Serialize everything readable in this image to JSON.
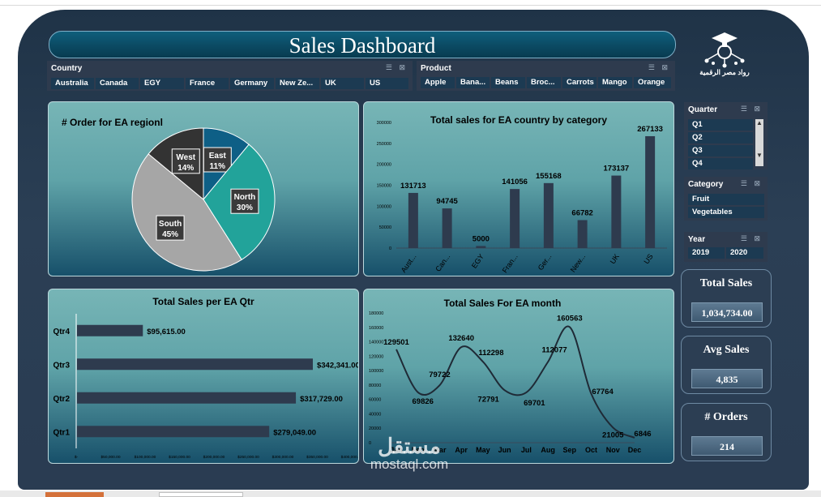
{
  "title": "Sales Dashboard",
  "logo_text": "رواد مصر الرقمية",
  "watermark": {
    "arabic": "مستقل",
    "latin": "mostaql.com"
  },
  "slicers": {
    "country": {
      "label": "Country",
      "items": [
        "Australia",
        "Canada",
        "EGY",
        "France",
        "Germany",
        "New Ze...",
        "UK",
        "US"
      ]
    },
    "product": {
      "label": "Product",
      "items": [
        "Apple",
        "Bana...",
        "Beans",
        "Broc...",
        "Carrots",
        "Mango",
        "Orange"
      ]
    },
    "quarter": {
      "label": "Quarter",
      "items": [
        "Q1",
        "Q2",
        "Q3",
        "Q4"
      ]
    },
    "category": {
      "label": "Category",
      "items": [
        "Fruit",
        "Vegetables"
      ]
    },
    "year": {
      "label": "Year",
      "items": [
        "2019",
        "2020"
      ]
    }
  },
  "kpis": {
    "total_sales": {
      "label": "Total Sales",
      "value": "1,034,734.00"
    },
    "avg_sales": {
      "label": "Avg Sales",
      "value": "4,835"
    },
    "orders": {
      "label": "# Orders",
      "value": "214"
    }
  },
  "colors": {
    "accent": "#0f5f7c",
    "bar": "#2e3b4e",
    "pie_east": "#0e5f86",
    "pie_north": "#22a39a",
    "pie_south": "#a6a6a6",
    "pie_west": "#333333"
  },
  "chart_data": [
    {
      "type": "pie",
      "title": "# Order for EA regionl",
      "categories": [
        "East",
        "North",
        "South",
        "West"
      ],
      "values": [
        11,
        30,
        45,
        14
      ],
      "labels": [
        "11%",
        "30%",
        "45%",
        "14%"
      ]
    },
    {
      "type": "bar",
      "title": "Total sales for EA country by category",
      "categories": [
        "Aust...",
        "Can...",
        "EGY",
        "Fran...",
        "Ger...",
        "New...",
        "UK",
        "US"
      ],
      "values": [
        131713,
        94745,
        5000,
        141056,
        155168,
        66782,
        173137,
        267133
      ],
      "ylim": [
        0,
        300000
      ],
      "yticks": [
        "0",
        "50000",
        "100000",
        "150000",
        "200000",
        "250000",
        "300000"
      ]
    },
    {
      "type": "bar",
      "orientation": "horizontal",
      "title": "Total Sales per EA Qtr",
      "categories": [
        "Qtr1",
        "Qtr2",
        "Qtr3",
        "Qtr4"
      ],
      "values": [
        279049,
        317729,
        342341,
        95615
      ],
      "labels": [
        "$279,049.00",
        "$317,729.00",
        "$342,341.00",
        "$95,615.00"
      ],
      "xlim": [
        0,
        400000
      ],
      "xticks": [
        "$-",
        "$50,000.00",
        "$100,000.00",
        "$150,000.00",
        "$200,000.00",
        "$250,000.00",
        "$300,000.00",
        "$350,000.00",
        "$400,000.00"
      ]
    },
    {
      "type": "line",
      "title": "Total Sales For EA month",
      "categories": [
        "Jan",
        "Feb",
        "Mar",
        "Apr",
        "May",
        "Jun",
        "Jul",
        "Aug",
        "Sep",
        "Oct",
        "Nov",
        "Dec"
      ],
      "values": [
        129501,
        69826,
        79722,
        132640,
        112298,
        72791,
        69701,
        112077,
        160563,
        67764,
        21005,
        6846
      ],
      "ylim": [
        0,
        180000
      ],
      "yticks": [
        "0",
        "20000",
        "40000",
        "60000",
        "80000",
        "100000",
        "120000",
        "140000",
        "160000",
        "180000"
      ]
    }
  ]
}
